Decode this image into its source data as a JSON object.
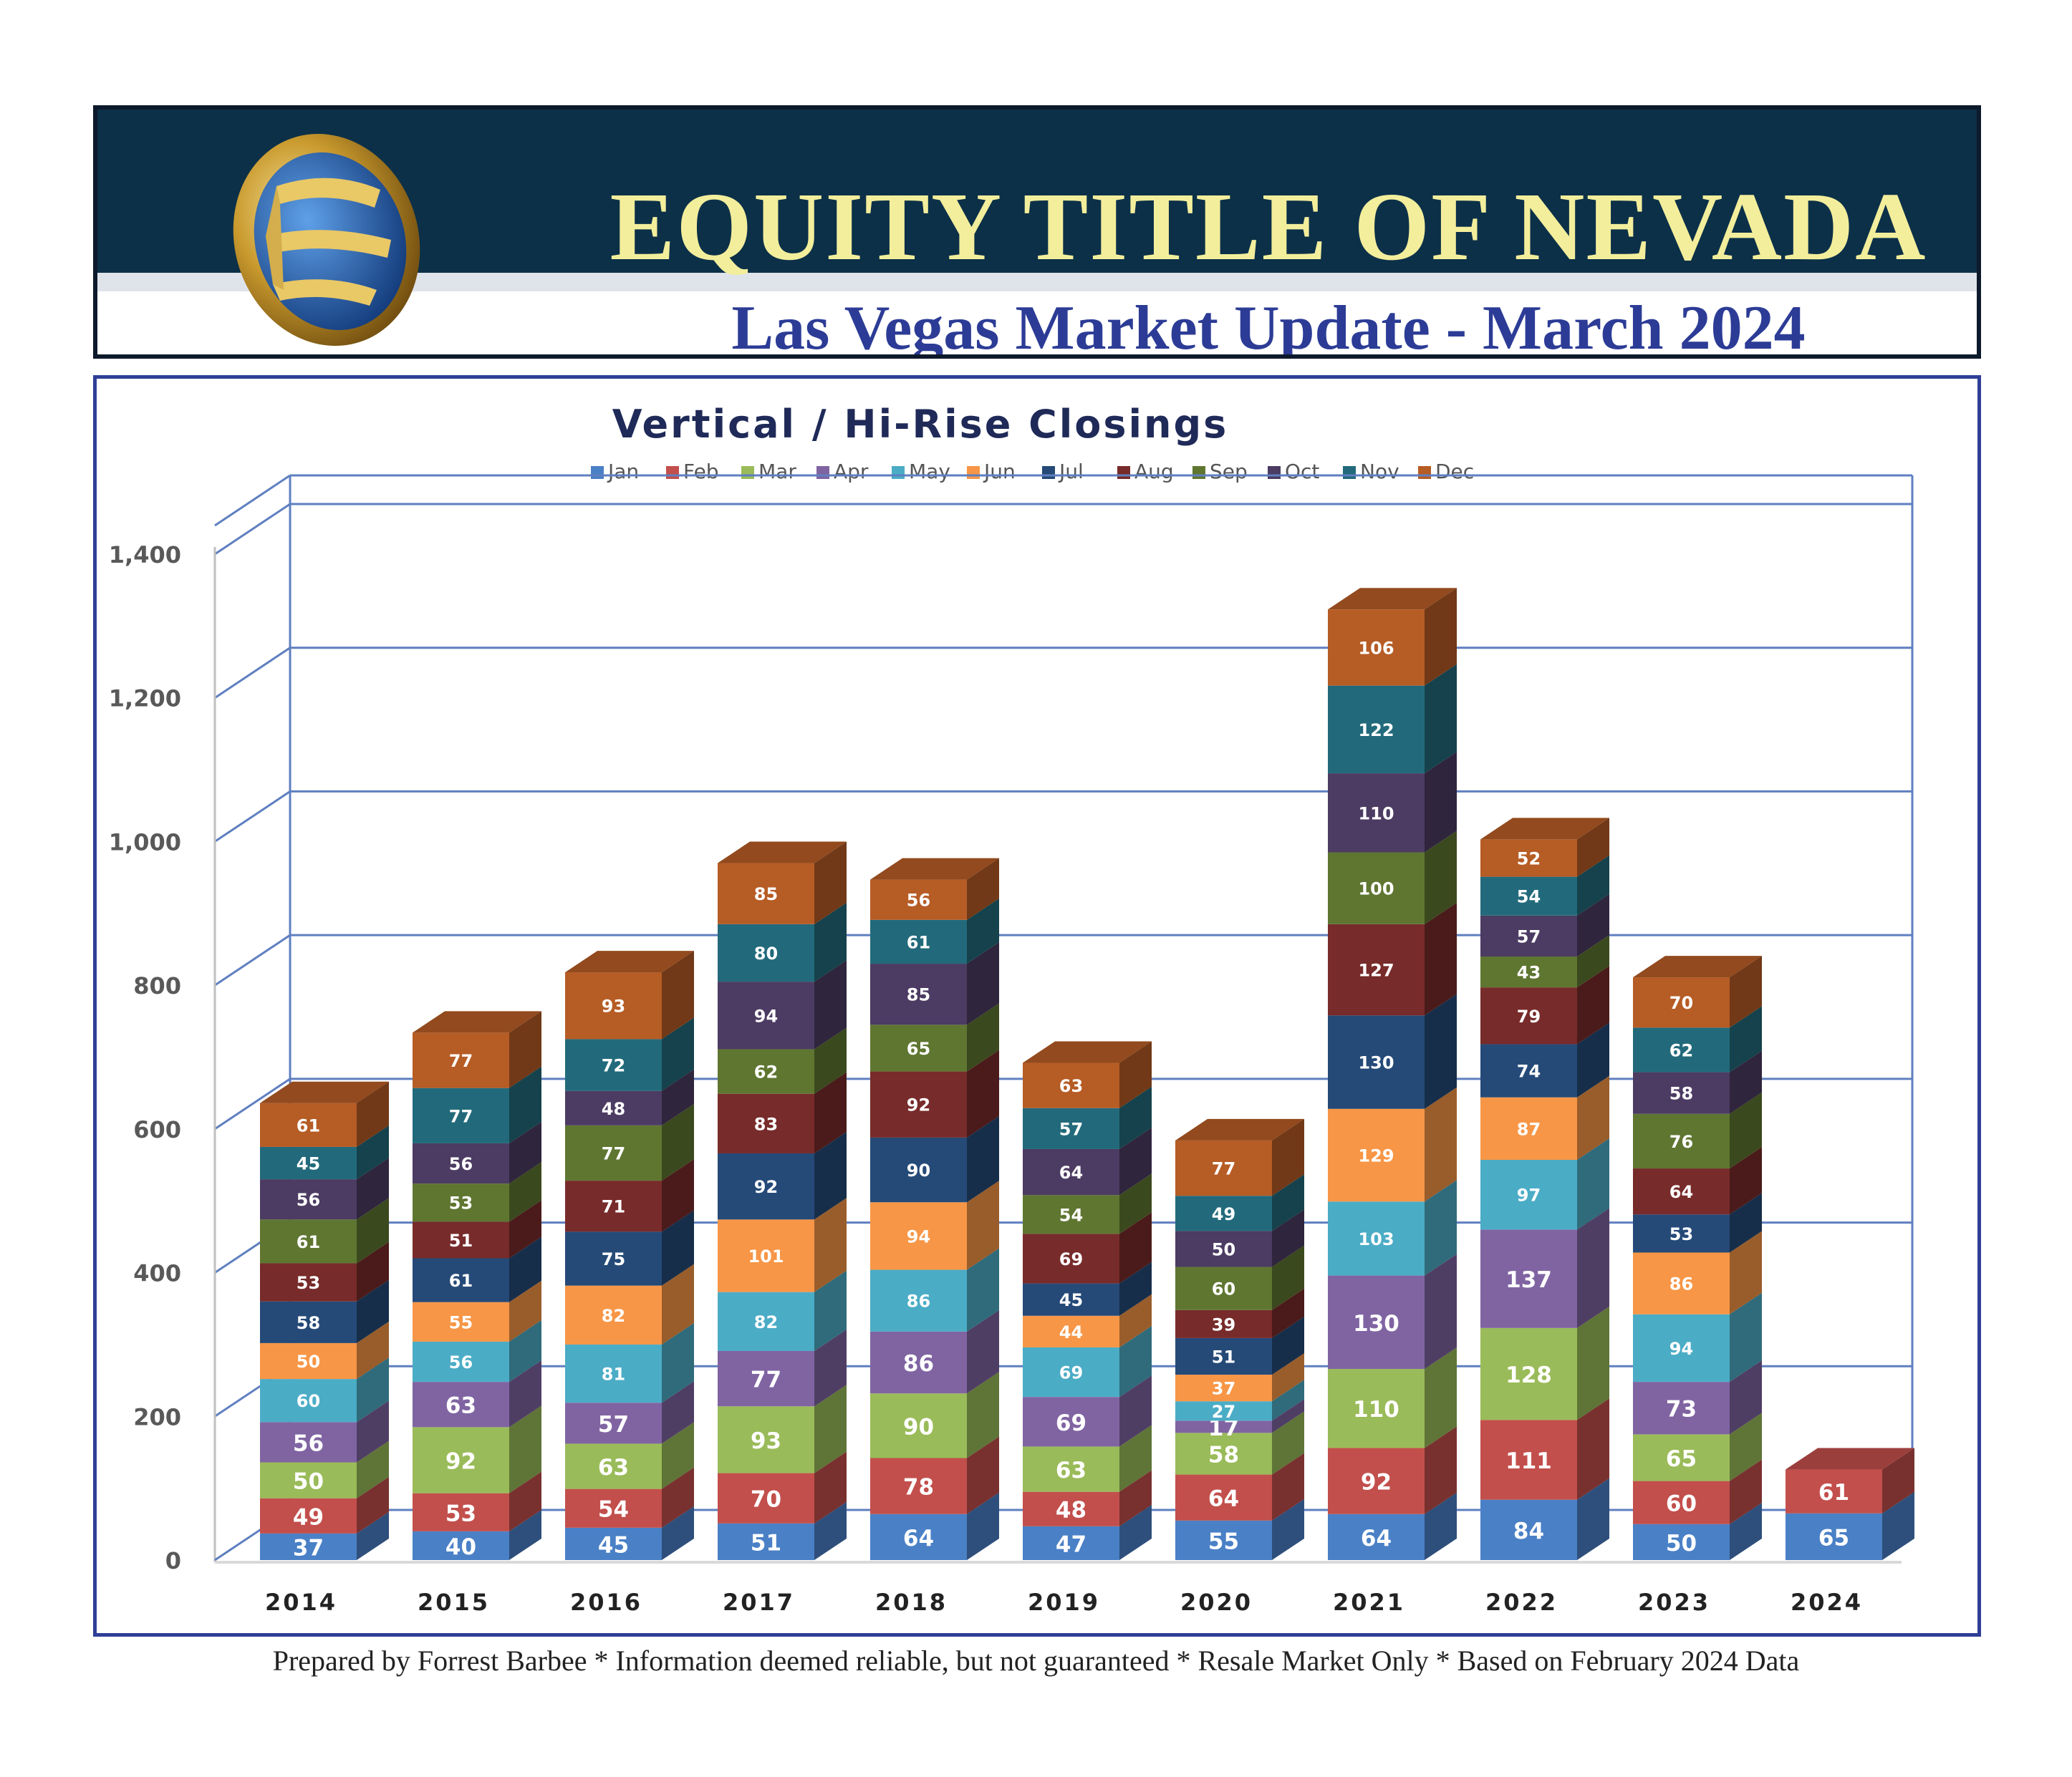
{
  "header": {
    "company": "EQUITY TITLE OF NEVADA",
    "subtitle": "Las Vegas Market Update - March 2024"
  },
  "colors": {
    "header_band": "#0c3048",
    "company_text": "#f3ee9c",
    "subtitle_text": "#2c3c96",
    "frame": "#2f3f96",
    "grid": "#5f7fc0"
  },
  "chart_data": {
    "type": "bar",
    "stacked": true,
    "three_d": true,
    "title": "Vertical / Hi-Rise Closings",
    "categories": [
      "2014",
      "2015",
      "2016",
      "2017",
      "2018",
      "2019",
      "2020",
      "2021",
      "2022",
      "2023",
      "2024"
    ],
    "ylim": [
      0,
      1400
    ],
    "y_ticks": [
      "0",
      "200",
      "400",
      "600",
      "800",
      "1,000",
      "1,200",
      "1,400"
    ],
    "legend_position": "top",
    "grid": true,
    "series": [
      {
        "name": "Jan",
        "color": "#4a80c6",
        "values": [
          37,
          40,
          45,
          51,
          64,
          47,
          55,
          64,
          84,
          50,
          65
        ]
      },
      {
        "name": "Feb",
        "color": "#c24f4c",
        "values": [
          49,
          53,
          54,
          70,
          78,
          48,
          64,
          92,
          111,
          60,
          61
        ]
      },
      {
        "name": "Mar",
        "color": "#9abb59",
        "values": [
          50,
          92,
          63,
          93,
          90,
          63,
          58,
          110,
          128,
          65,
          null
        ]
      },
      {
        "name": "Apr",
        "color": "#8064a2",
        "values": [
          56,
          63,
          57,
          77,
          86,
          69,
          17,
          130,
          137,
          73,
          null
        ]
      },
      {
        "name": "May",
        "color": "#4bacc6",
        "values": [
          60,
          56,
          81,
          82,
          86,
          69,
          27,
          103,
          97,
          94,
          null
        ]
      },
      {
        "name": "Jun",
        "color": "#f79646",
        "values": [
          50,
          55,
          82,
          101,
          94,
          44,
          37,
          129,
          87,
          86,
          null
        ]
      },
      {
        "name": "Jul",
        "color": "#254a78",
        "values": [
          58,
          61,
          75,
          92,
          90,
          45,
          51,
          130,
          74,
          53,
          null
        ]
      },
      {
        "name": "Aug",
        "color": "#772b2a",
        "values": [
          53,
          51,
          71,
          83,
          92,
          69,
          39,
          127,
          79,
          64,
          null
        ]
      },
      {
        "name": "Sep",
        "color": "#5f7631",
        "values": [
          61,
          53,
          77,
          62,
          65,
          54,
          60,
          100,
          43,
          76,
          null
        ]
      },
      {
        "name": "Oct",
        "color": "#4c3b62",
        "values": [
          56,
          56,
          48,
          94,
          85,
          64,
          50,
          110,
          57,
          58,
          null
        ]
      },
      {
        "name": "Nov",
        "color": "#226a7b",
        "values": [
          45,
          77,
          72,
          80,
          61,
          57,
          49,
          122,
          54,
          62,
          null
        ]
      },
      {
        "name": "Dec",
        "color": "#b65c25",
        "values": [
          61,
          77,
          93,
          85,
          56,
          63,
          77,
          106,
          52,
          70,
          null
        ]
      }
    ]
  },
  "footer": {
    "text": "Prepared by Forrest Barbee * Information deemed reliable, but not guaranteed * Resale Market Only * Based on February 2024 Data"
  }
}
